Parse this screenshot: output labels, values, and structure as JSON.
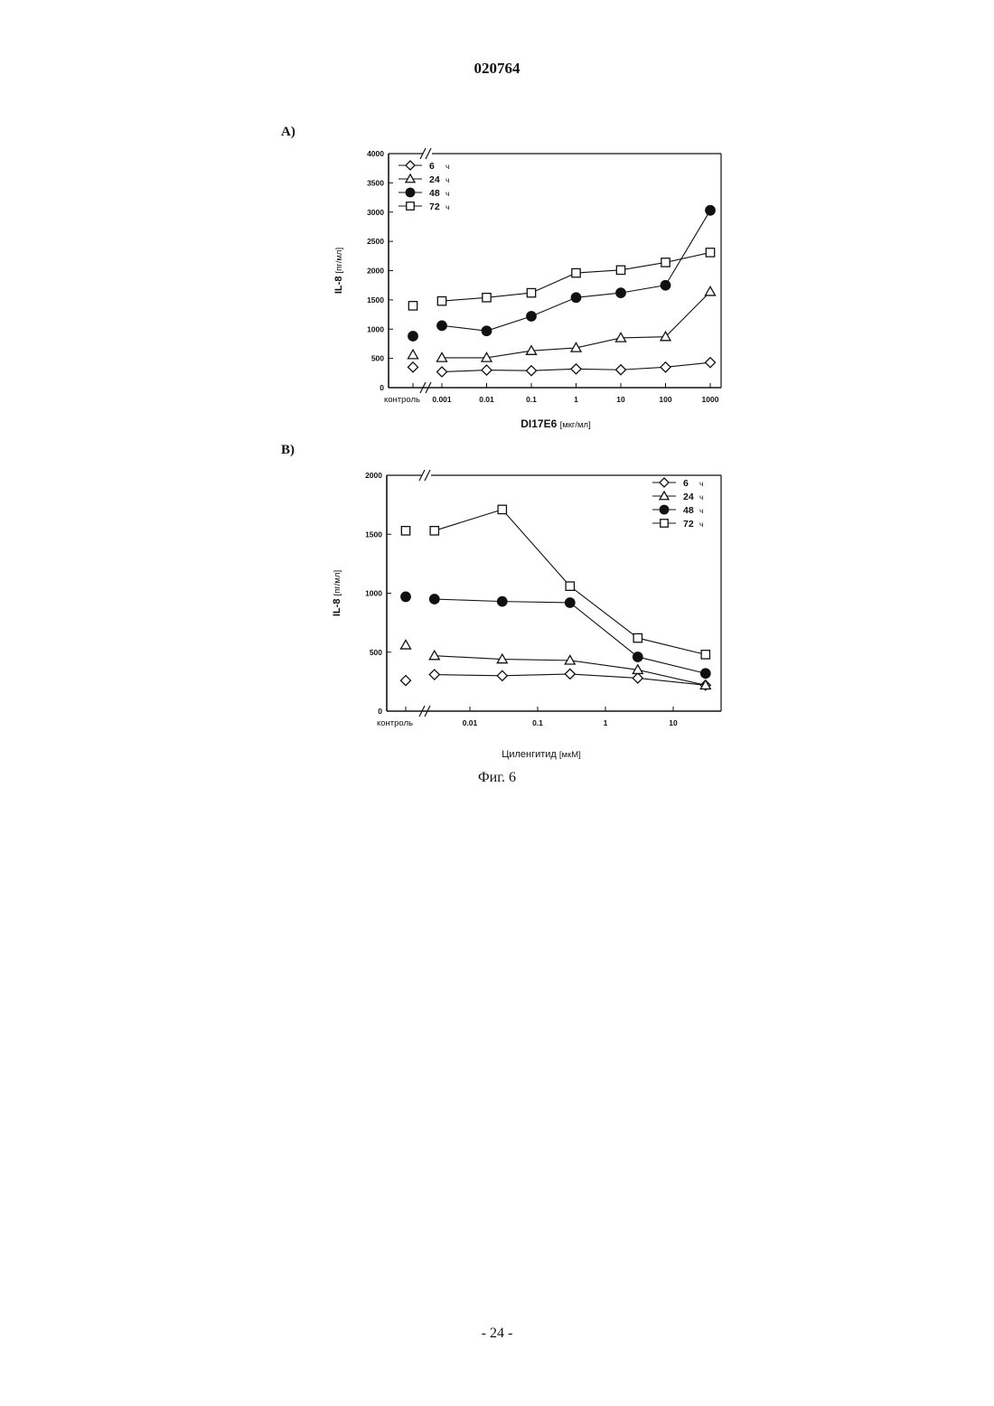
{
  "document": {
    "number": "020764",
    "panel_a_label": "A)",
    "panel_b_label": "B)",
    "figure_caption": "Фиг. 6",
    "page_number": "- 24 -"
  },
  "chart_data": [
    {
      "type": "line",
      "panel": "A)",
      "xlabel": "DI17E6",
      "xlabel_unit": "[мкг/мл]",
      "ylabel": "IL-8",
      "ylabel_unit": "[пг/мл]",
      "x_scale": "log",
      "control_label": "контроль",
      "categories": [
        "контроль",
        "0.001",
        "0.01",
        "0.1",
        "1",
        "10",
        "100",
        "1000"
      ],
      "x": [
        0.001,
        0.01,
        0.1,
        1,
        10,
        100,
        1000
      ],
      "ylim": [
        0,
        4000
      ],
      "yticks": [
        0,
        500,
        1000,
        1500,
        2000,
        2500,
        3000,
        3500,
        4000
      ],
      "axis_break": true,
      "grid": false,
      "legend_position": "top-left",
      "series": [
        {
          "name": "6",
          "unit": "ч",
          "marker": "diamond-open",
          "control": 350,
          "values": [
            270,
            300,
            290,
            320,
            305,
            350,
            430
          ]
        },
        {
          "name": "24",
          "unit": "ч",
          "marker": "triangle-open",
          "control": 560,
          "values": [
            510,
            510,
            630,
            680,
            850,
            870,
            1640
          ]
        },
        {
          "name": "48",
          "unit": "ч",
          "marker": "circle-filled",
          "control": 880,
          "values": [
            1060,
            970,
            1220,
            1540,
            1620,
            1750,
            3030
          ]
        },
        {
          "name": "72",
          "unit": "ч",
          "marker": "square-open",
          "control": 1400,
          "values": [
            1480,
            1540,
            1620,
            1960,
            2010,
            2140,
            2310
          ]
        }
      ]
    },
    {
      "type": "line",
      "panel": "B)",
      "xlabel": "Циленгитид",
      "xlabel_unit": "[мкМ]",
      "ylabel": "IL-8",
      "ylabel_unit": "[пг/мл]",
      "x_scale": "log",
      "control_label": "контроль",
      "xticks": [
        "0.01",
        "0.1",
        "1",
        "10"
      ],
      "x": [
        0.003,
        0.03,
        0.3,
        3,
        30
      ],
      "ylim": [
        0,
        2000
      ],
      "yticks": [
        0,
        500,
        1000,
        1500,
        2000
      ],
      "axis_break": true,
      "grid": false,
      "legend_position": "top-right",
      "series": [
        {
          "name": "6",
          "unit": "ч",
          "marker": "diamond-open",
          "control": 260,
          "values": [
            310,
            300,
            315,
            280,
            220
          ]
        },
        {
          "name": "24",
          "unit": "ч",
          "marker": "triangle-open",
          "control": 560,
          "values": [
            470,
            440,
            430,
            350,
            220
          ]
        },
        {
          "name": "48",
          "unit": "ч",
          "marker": "circle-filled",
          "control": 970,
          "values": [
            950,
            930,
            920,
            460,
            320
          ]
        },
        {
          "name": "72",
          "unit": "ч",
          "marker": "square-open",
          "control": 1530,
          "values": [
            1530,
            1710,
            1060,
            620,
            480
          ]
        }
      ]
    }
  ]
}
